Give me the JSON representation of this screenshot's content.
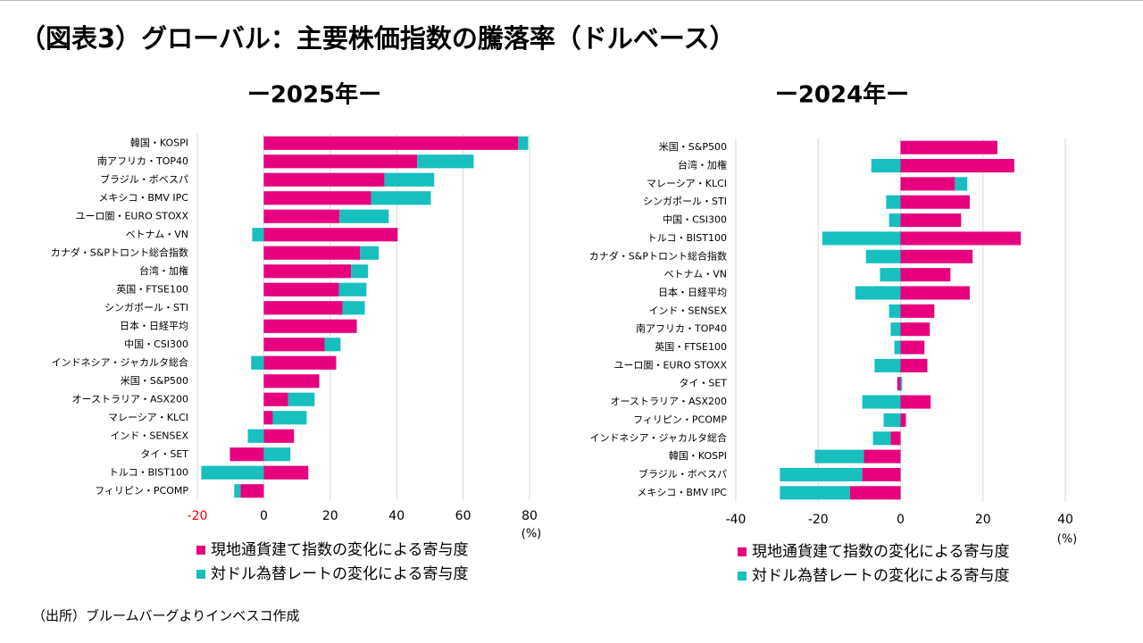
{
  "title": "（図表3）グローバル：主要株価指数の騰落率（ドルベース）",
  "source": "（出所）ブルームバーグよりインベスコ作成",
  "chart_data": [
    {
      "type": "bar",
      "orientation": "horizontal",
      "stacked": true,
      "title": "ー2025年ー",
      "categories": [
        "韓国・KOSPI",
        "南アフリカ・TOP40",
        "ブラジル・ボベスパ",
        "メキシコ・BMV IPC",
        "ユーロ圏・EURO STOXX",
        "ベトナム・VN",
        "カナダ・S&Pトロント総合指数",
        "台湾・加権",
        "英国・FTSE100",
        "シンガポール・STI",
        "日本・日経平均",
        "中国・CSI300",
        "インドネシア・ジャカルタ総合",
        "米国・S&P500",
        "オーストラリア・ASX200",
        "マレーシア・KLCI",
        "インド・SENSEX",
        "タイ・SET",
        "トルコ・BIST100",
        "フィリピン・PCOMP"
      ],
      "series": [
        {
          "name": "現地通貨建て指数の変化による寄与度",
          "color": "#e6007e",
          "values": [
            76.6,
            46.2,
            36.3,
            32.3,
            22.8,
            40.3,
            29,
            26.3,
            22.6,
            23.7,
            28,
            18.3,
            21.8,
            16.7,
            7.3,
            2.7,
            9.1,
            -10.2,
            13.4,
            -7
          ]
        },
        {
          "name": "対ドル為替レートの変化による寄与度",
          "color": "#17bfbf",
          "values": [
            3,
            17,
            15,
            18,
            14.8,
            -3.5,
            5.6,
            5.1,
            8.3,
            6.7,
            0,
            4.8,
            -3.8,
            0,
            8,
            10.2,
            -4.8,
            8,
            -18.8,
            -1.9
          ]
        }
      ],
      "xlim": [
        -20,
        80
      ],
      "xticks": [
        -20,
        0,
        20,
        40,
        60,
        80
      ],
      "xtick_label_colors": [
        "#ff0000",
        "#000000",
        "#000000",
        "#000000",
        "#000000",
        "#000000"
      ],
      "xlabel": "(%)",
      "grid": true
    },
    {
      "type": "bar",
      "orientation": "horizontal",
      "stacked": true,
      "title": "ー2024年ー",
      "categories": [
        "米国・S&P500",
        "台湾・加権",
        "マレーシア・KLCI",
        "シンガポール・STI",
        "中国・CSI300",
        "トルコ・BIST100",
        "カナダ・S&Pトロント総合指数",
        "ベトナム・VN",
        "日本・日経平均",
        "インド・SENSEX",
        "南アフリカ・TOP40",
        "英国・FTSE100",
        "ユーロ圏・EURO STOXX",
        "タイ・SET",
        "オーストラリア・ASX200",
        "フィリピン・PCOMP",
        "インドネシア・ジャカルタ総合",
        "韓国・KOSPI",
        "ブラジル・ボベスパ",
        "メキシコ・BMV IPC"
      ],
      "series": [
        {
          "name": "現地通貨建て指数の変化による寄与度",
          "color": "#e6007e",
          "values": [
            23.5,
            27.6,
            13.2,
            16.8,
            14.7,
            29.2,
            17.5,
            12.1,
            16.8,
            8.2,
            7.1,
            5.8,
            6.5,
            -0.8,
            7.3,
            1.3,
            -2.4,
            -8.9,
            -9.3,
            -12.3
          ]
        },
        {
          "name": "対ドル為替レートの変化による寄与度",
          "color": "#17bfbf",
          "values": [
            0,
            -7.1,
            3,
            -3.5,
            -2.8,
            -19,
            -8.4,
            -5,
            -11,
            -2.8,
            -2.4,
            -1.5,
            -6.3,
            0.4,
            -9.3,
            -4.1,
            -4.3,
            -11.9,
            -20,
            -17
          ]
        }
      ],
      "xlim": [
        -40,
        40
      ],
      "xticks": [
        -40,
        -20,
        0,
        20,
        40
      ],
      "xlabel": "(%)",
      "grid": true
    }
  ]
}
